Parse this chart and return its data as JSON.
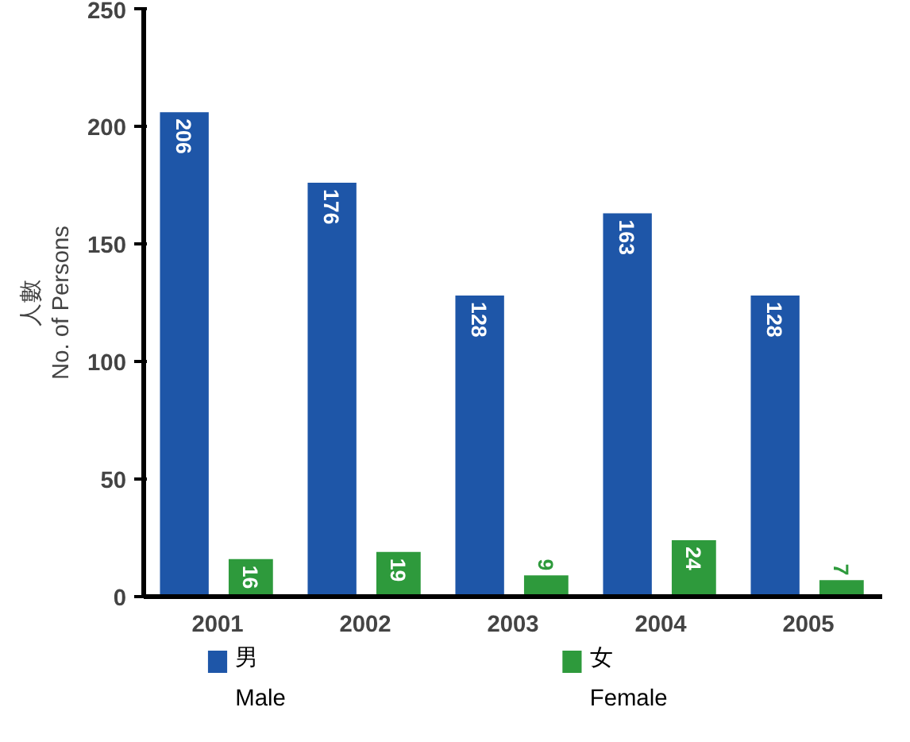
{
  "chart_data": {
    "type": "bar",
    "ylabel": "人數\nNo. of Persons",
    "categories": [
      "2001",
      "2002",
      "2003",
      "2004",
      "2005"
    ],
    "series": [
      {
        "name": "男\nMale",
        "color": "#1e56a8",
        "values": [
          206,
          176,
          128,
          163,
          128
        ]
      },
      {
        "name": "女\nFemale",
        "color": "#2e9a3c",
        "values": [
          16,
          19,
          9,
          24,
          7
        ]
      }
    ],
    "ylim": [
      0,
      250
    ],
    "yticks": [
      0,
      50,
      100,
      150,
      200,
      250
    ],
    "grid": false,
    "legend": "bottom",
    "data_labels": true
  }
}
